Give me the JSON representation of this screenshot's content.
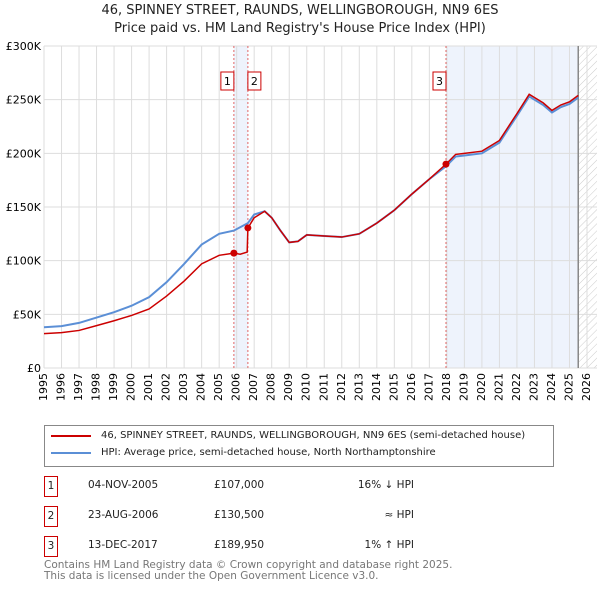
{
  "chart_data": {
    "type": "line",
    "title": "46, SPINNEY STREET, RAUNDS, WELLINGBOROUGH, NN9 6ES",
    "subtitle": "Price paid vs. HM Land Registry's House Price Index (HPI)",
    "xlim": [
      1995,
      2026
    ],
    "ylim": [
      0,
      300000
    ],
    "x_ticks": [
      "1995",
      "1996",
      "1997",
      "1998",
      "1999",
      "2000",
      "2001",
      "2002",
      "2003",
      "2004",
      "2005",
      "2006",
      "2007",
      "2008",
      "2009",
      "2010",
      "2011",
      "2012",
      "2013",
      "2014",
      "2015",
      "2016",
      "2017",
      "2018",
      "2019",
      "2020",
      "2021",
      "2022",
      "2023",
      "2024",
      "2025",
      "2026"
    ],
    "y_ticks": [
      {
        "v": 0,
        "label": "£0"
      },
      {
        "v": 50000,
        "label": "£50K"
      },
      {
        "v": 100000,
        "label": "£100K"
      },
      {
        "v": 150000,
        "label": "£150K"
      },
      {
        "v": 200000,
        "label": "£200K"
      },
      {
        "v": 250000,
        "label": "£250K"
      },
      {
        "v": 300000,
        "label": "£300K"
      }
    ],
    "grid": true,
    "series": [
      {
        "name": "46, SPINNEY STREET, RAUNDS, WELLINGBOROUGH, NN9 6ES (semi-detached house)",
        "color": "#cc0000",
        "x": [
          1995,
          1996,
          1997,
          1998,
          1999,
          2000,
          2001,
          2002,
          2003,
          2004,
          2005,
          2005.84,
          2006.2,
          2006.6,
          2006.64,
          2007,
          2007.6,
          2008,
          2008.5,
          2009,
          2009.5,
          2010,
          2011,
          2012,
          2013,
          2014,
          2015,
          2016,
          2017,
          2017.95,
          2018.5,
          2019,
          2020,
          2021,
          2022,
          2022.7,
          2023,
          2023.5,
          2024,
          2024.5,
          2025,
          2025.5
        ],
        "y": [
          32000,
          33000,
          35000,
          39500,
          44000,
          49000,
          55000,
          67000,
          81000,
          97000,
          105000,
          107000,
          106000,
          108000,
          130500,
          140000,
          146000,
          140000,
          128000,
          117000,
          118000,
          124000,
          123000,
          122000,
          125000,
          135000,
          147000,
          162000,
          176000,
          189950,
          199000,
          200000,
          202000,
          212000,
          237000,
          255000,
          252000,
          247000,
          240000,
          245000,
          248000,
          254000
        ]
      },
      {
        "name": "HPI: Average price, semi-detached house, North Northamptonshire",
        "color": "#5b8fd6",
        "x": [
          1995,
          1996,
          1997,
          1998,
          1999,
          2000,
          2001,
          2002,
          2003,
          2004,
          2005,
          2005.84,
          2006.64,
          2007,
          2007.6,
          2008,
          2008.5,
          2009,
          2009.5,
          2010,
          2011,
          2012,
          2013,
          2014,
          2015,
          2016,
          2017,
          2017.95,
          2018.5,
          2019,
          2020,
          2021,
          2022,
          2022.7,
          2023,
          2023.5,
          2024,
          2024.5,
          2025,
          2025.5
        ],
        "y": [
          38000,
          39000,
          42000,
          47000,
          52000,
          58000,
          66000,
          80000,
          97000,
          115000,
          125000,
          128000,
          135000,
          143000,
          146000,
          140000,
          128000,
          117000,
          118000,
          124000,
          123000,
          122000,
          125000,
          135000,
          147000,
          162000,
          176000,
          188000,
          197000,
          198000,
          200000,
          210000,
          235000,
          253000,
          250000,
          245000,
          238000,
          243000,
          246000,
          252000
        ]
      }
    ],
    "sales": [
      {
        "label": "1",
        "x": 2005.84,
        "y": 107000,
        "date": "04-NOV-2005",
        "price": "£107,000",
        "hpi": "16% ↓ HPI"
      },
      {
        "label": "2",
        "x": 2006.64,
        "y": 130500,
        "date": "23-AUG-2006",
        "price": "£130,500",
        "hpi": "≈ HPI"
      },
      {
        "label": "3",
        "x": 2017.95,
        "y": 189950,
        "date": "13-DEC-2017",
        "price": "£189,950",
        "hpi": "1% ↑ HPI"
      }
    ],
    "data_end": 2025.5,
    "legend_position": "below"
  },
  "footer": {
    "line1": "Contains HM Land Registry data © Crown copyright and database right 2025.",
    "line2": "This data is licensed under the Open Government Licence v3.0."
  }
}
